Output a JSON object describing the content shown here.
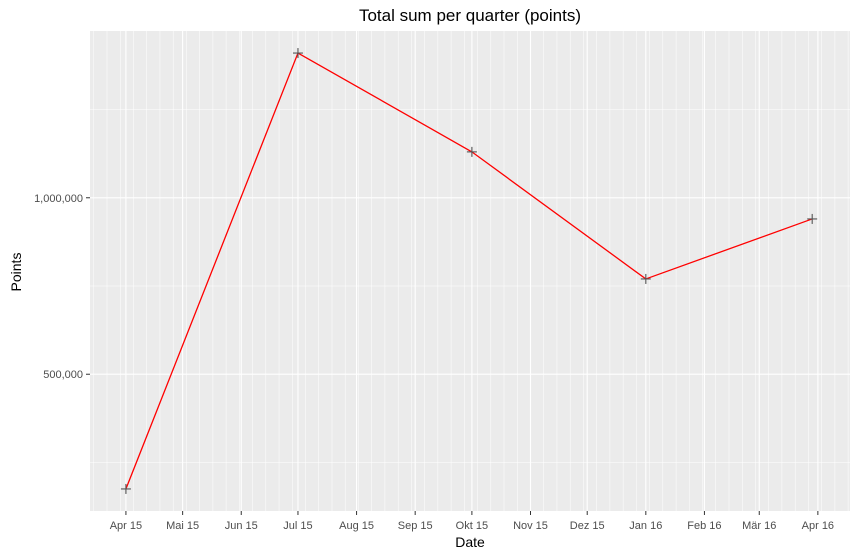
{
  "chart_data": {
    "type": "line",
    "title": "Total sum per quarter (points)",
    "xlabel": "Date",
    "ylabel": "Points",
    "x": [
      "2015-04-01",
      "2015-07-01",
      "2015-10-01",
      "2016-01-01",
      "2016-03-29"
    ],
    "series": [
      {
        "values": [
          175000,
          1410000,
          1130000,
          770000,
          940000
        ],
        "color": "#ff0000",
        "marker": "plus"
      }
    ],
    "xlim": [
      "2015-03-13",
      "2016-04-18"
    ],
    "ylim": [
      112500,
      1472500
    ],
    "x_ticks": [
      {
        "date": "2015-04-01",
        "label": "Apr 15"
      },
      {
        "date": "2015-05-01",
        "label": "Mai 15"
      },
      {
        "date": "2015-06-01",
        "label": "Jun 15"
      },
      {
        "date": "2015-07-01",
        "label": "Jul 15"
      },
      {
        "date": "2015-08-01",
        "label": "Aug 15"
      },
      {
        "date": "2015-09-01",
        "label": "Sep 15"
      },
      {
        "date": "2015-10-01",
        "label": "Okt 15"
      },
      {
        "date": "2015-11-01",
        "label": "Nov 15"
      },
      {
        "date": "2015-12-01",
        "label": "Dez 15"
      },
      {
        "date": "2016-01-01",
        "label": "Jan 16"
      },
      {
        "date": "2016-02-01",
        "label": "Feb 16"
      },
      {
        "date": "2016-03-01",
        "label": "Mär 16"
      },
      {
        "date": "2016-04-01",
        "label": "Apr 16"
      }
    ],
    "y_ticks": [
      {
        "value": 500000,
        "label": "500,000"
      },
      {
        "value": 1000000,
        "label": "1,000,000"
      }
    ],
    "grid": true,
    "panel_background": "#ebebeb",
    "grid_color": "#ffffff",
    "marker_color": "#555555"
  }
}
